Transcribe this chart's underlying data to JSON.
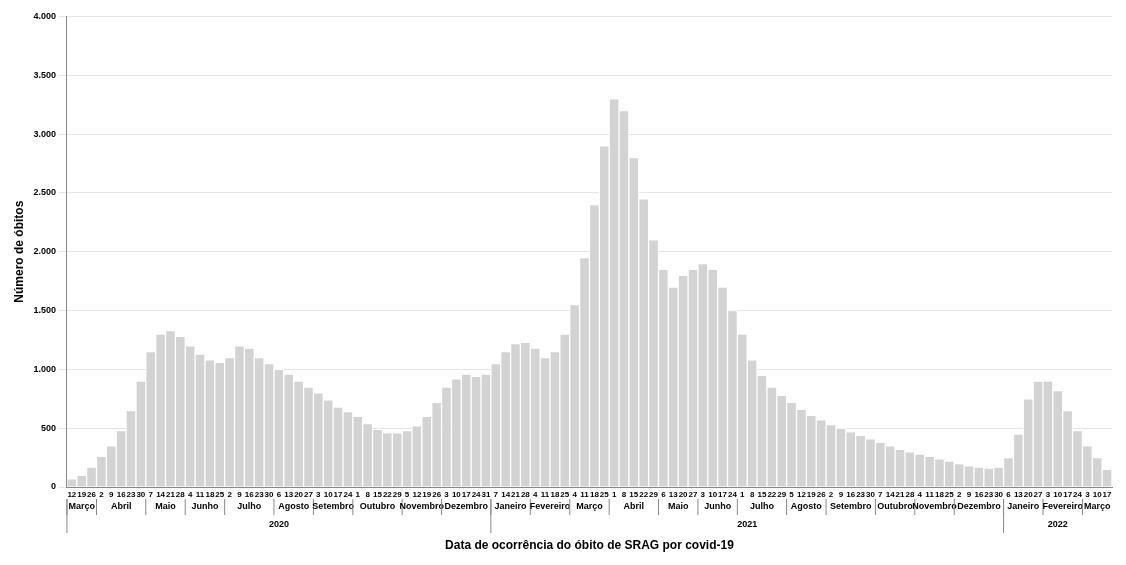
{
  "chart_data": {
    "type": "bar",
    "xlabel": "Data de ocorrência do óbito de SRAG por covid-19",
    "ylabel": "Número de óbitos",
    "x": [
      "2020-03-12",
      "2020-03-19",
      "2020-03-26",
      "2020-04-02",
      "2020-04-09",
      "2020-04-16",
      "2020-04-23",
      "2020-04-30",
      "2020-05-07",
      "2020-05-14",
      "2020-05-21",
      "2020-05-28",
      "2020-06-04",
      "2020-06-11",
      "2020-06-18",
      "2020-06-25",
      "2020-07-02",
      "2020-07-09",
      "2020-07-16",
      "2020-07-23",
      "2020-07-30",
      "2020-08-06",
      "2020-08-13",
      "2020-08-20",
      "2020-08-27",
      "2020-09-03",
      "2020-09-10",
      "2020-09-17",
      "2020-09-24",
      "2020-10-01",
      "2020-10-08",
      "2020-10-15",
      "2020-10-22",
      "2020-10-29",
      "2020-11-05",
      "2020-11-12",
      "2020-11-19",
      "2020-11-26",
      "2020-12-03",
      "2020-12-10",
      "2020-12-17",
      "2020-12-24",
      "2020-12-31",
      "2021-01-07",
      "2021-01-14",
      "2021-01-21",
      "2021-01-28",
      "2021-02-04",
      "2021-02-11",
      "2021-02-18",
      "2021-02-25",
      "2021-03-04",
      "2021-03-11",
      "2021-03-18",
      "2021-03-25",
      "2021-04-01",
      "2021-04-08",
      "2021-04-15",
      "2021-04-22",
      "2021-04-29",
      "2021-05-06",
      "2021-05-13",
      "2021-05-20",
      "2021-05-27",
      "2021-06-03",
      "2021-06-10",
      "2021-06-17",
      "2021-06-24",
      "2021-07-01",
      "2021-07-08",
      "2021-07-15",
      "2021-07-22",
      "2021-07-29",
      "2021-08-05",
      "2021-08-12",
      "2021-08-19",
      "2021-08-26",
      "2021-09-02",
      "2021-09-09",
      "2021-09-16",
      "2021-09-23",
      "2021-09-30",
      "2021-10-07",
      "2021-10-14",
      "2021-10-21",
      "2021-10-28",
      "2021-11-04",
      "2021-11-11",
      "2021-11-18",
      "2021-11-25",
      "2021-12-02",
      "2021-12-09",
      "2021-12-16",
      "2021-12-23",
      "2021-12-30",
      "2022-01-06",
      "2022-01-13",
      "2022-01-20",
      "2022-01-27",
      "2022-02-03",
      "2022-02-10",
      "2022-02-17",
      "2022-02-24",
      "2022-03-03",
      "2022-03-10",
      "2022-03-17"
    ],
    "values": [
      70,
      100,
      170,
      260,
      350,
      480,
      650,
      900,
      1150,
      1300,
      1330,
      1280,
      1200,
      1130,
      1080,
      1060,
      1100,
      1200,
      1180,
      1100,
      1050,
      1000,
      960,
      900,
      850,
      800,
      740,
      680,
      640,
      600,
      540,
      490,
      460,
      460,
      480,
      520,
      600,
      720,
      850,
      920,
      960,
      940,
      960,
      1050,
      1150,
      1220,
      1230,
      1180,
      1100,
      1150,
      1300,
      1550,
      1950,
      2400,
      2900,
      3300,
      3200,
      2800,
      2450,
      2100,
      1850,
      1700,
      1800,
      1850,
      1900,
      1850,
      1700,
      1500,
      1300,
      1080,
      950,
      850,
      780,
      720,
      660,
      610,
      570,
      530,
      500,
      470,
      440,
      410,
      380,
      350,
      320,
      300,
      280,
      260,
      240,
      220,
      200,
      180,
      170,
      160,
      170,
      250,
      450,
      750,
      900,
      900,
      820,
      650,
      480,
      350,
      250,
      150
    ],
    "color": "#d3d3d3",
    "ylim": [
      0,
      4000
    ],
    "yticks": [
      0,
      {
        "value": 500,
        "label": "500"
      },
      {
        "value": 1000,
        "label": "1.000"
      },
      {
        "value": 1500,
        "label": "1.500"
      },
      {
        "value": 2000,
        "label": "2.000"
      },
      {
        "value": 2500,
        "label": "2.500"
      },
      {
        "value": 3000,
        "label": "3.000"
      },
      {
        "value": 3500,
        "label": "3.500"
      },
      {
        "value": 4000,
        "label": "4.000"
      }
    ],
    "xticks": [
      {
        "value": "2020-03-12",
        "label": "12"
      },
      {
        "value": "2020-03-19",
        "label": "19"
      },
      {
        "value": "2020-03-26",
        "label": "26"
      },
      {
        "value": "2020-04-02",
        "label": "2"
      },
      {
        "value": "2020-04-09",
        "label": "9"
      },
      {
        "value": "2020-04-16",
        "label": "16"
      },
      {
        "value": "2020-04-23",
        "label": "23"
      },
      {
        "value": "2020-04-30",
        "label": "30"
      },
      {
        "value": "2020-05-07",
        "label": "7"
      },
      {
        "value": "2020-05-14",
        "label": "14"
      },
      {
        "value": "2020-05-21",
        "label": "21"
      },
      {
        "value": "2020-05-28",
        "label": "28"
      },
      {
        "value": "2020-06-04",
        "label": "4"
      },
      {
        "value": "2020-06-11",
        "label": "11"
      },
      {
        "value": "2020-06-18",
        "label": "18"
      },
      {
        "value": "2020-06-25",
        "label": "25"
      },
      {
        "value": "2020-07-02",
        "label": "2"
      },
      {
        "value": "2020-07-09",
        "label": "9"
      },
      {
        "value": "2020-07-16",
        "label": "16"
      },
      {
        "value": "2020-07-23",
        "label": "23"
      },
      {
        "value": "2020-07-30",
        "label": "30"
      },
      {
        "value": "2020-08-06",
        "label": "6"
      },
      {
        "value": "2020-08-13",
        "label": "13"
      },
      {
        "value": "2020-08-20",
        "label": "20"
      },
      {
        "value": "2020-08-27",
        "label": "27"
      },
      {
        "value": "2020-09-03",
        "label": "3"
      },
      {
        "value": "2020-09-10",
        "label": "10"
      },
      {
        "value": "2020-09-17",
        "label": "17"
      },
      {
        "value": "2020-09-24",
        "label": "24"
      },
      {
        "value": "2020-10-01",
        "label": "1"
      },
      {
        "value": "2020-10-08",
        "label": "8"
      },
      {
        "value": "2020-10-15",
        "label": "15"
      },
      {
        "value": "2020-10-22",
        "label": "22"
      },
      {
        "value": "2020-10-29",
        "label": "29"
      },
      {
        "value": "2020-11-05",
        "label": "5"
      },
      {
        "value": "2020-11-12",
        "label": "12"
      },
      {
        "value": "2020-11-19",
        "label": "19"
      },
      {
        "value": "2020-11-26",
        "label": "26"
      },
      {
        "value": "2020-12-03",
        "label": "3"
      },
      {
        "value": "2020-12-10",
        "label": "10"
      },
      {
        "value": "2020-12-17",
        "label": "17"
      },
      {
        "value": "2020-12-24",
        "label": "24"
      },
      {
        "value": "2020-12-31",
        "label": "31"
      },
      {
        "value": "2021-01-07",
        "label": "7"
      },
      {
        "value": "2021-01-14",
        "label": "14"
      },
      {
        "value": "2021-01-21",
        "label": "21"
      },
      {
        "value": "2021-01-28",
        "label": "28"
      },
      {
        "value": "2021-02-04",
        "label": "4"
      },
      {
        "value": "2021-02-11",
        "label": "11"
      },
      {
        "value": "2021-02-18",
        "label": "18"
      },
      {
        "value": "2021-02-25",
        "label": "25"
      },
      {
        "value": "2021-03-04",
        "label": "4"
      },
      {
        "value": "2021-03-11",
        "label": "11"
      },
      {
        "value": "2021-03-18",
        "label": "18"
      },
      {
        "value": "2021-03-25",
        "label": "25"
      },
      {
        "value": "2021-04-01",
        "label": "1"
      },
      {
        "value": "2021-04-08",
        "label": "8"
      },
      {
        "value": "2021-04-15",
        "label": "15"
      },
      {
        "value": "2021-04-22",
        "label": "22"
      },
      {
        "value": "2021-04-29",
        "label": "29"
      },
      {
        "value": "2021-05-06",
        "label": "6"
      },
      {
        "value": "2021-05-13",
        "label": "13"
      },
      {
        "value": "2021-05-20",
        "label": "20"
      },
      {
        "value": "2021-05-27",
        "label": "27"
      },
      {
        "value": "2021-06-03",
        "label": "3"
      },
      {
        "value": "2021-06-10",
        "label": "10"
      },
      {
        "value": "2021-06-17",
        "label": "17"
      },
      {
        "value": "2021-06-24",
        "label": "24"
      },
      {
        "value": "2021-07-01",
        "label": "1"
      },
      {
        "value": "2021-07-08",
        "label": "8"
      },
      {
        "value": "2021-07-15",
        "label": "15"
      },
      {
        "value": "2021-07-22",
        "label": "22"
      },
      {
        "value": "2021-07-29",
        "label": "29"
      },
      {
        "value": "2021-08-05",
        "label": "5"
      },
      {
        "value": "2021-08-12",
        "label": "12"
      },
      {
        "value": "2021-08-19",
        "label": "19"
      },
      {
        "value": "2021-08-26",
        "label": "26"
      },
      {
        "value": "2021-09-02",
        "label": "2"
      },
      {
        "value": "2021-09-09",
        "label": "9"
      },
      {
        "value": "2021-09-16",
        "label": "16"
      },
      {
        "value": "2021-09-23",
        "label": "23"
      },
      {
        "value": "2021-09-30",
        "label": "30"
      },
      {
        "value": "2021-10-07",
        "label": "7"
      },
      {
        "value": "2021-10-14",
        "label": "14"
      },
      {
        "value": "2021-10-21",
        "label": "21"
      },
      {
        "value": "2021-10-28",
        "label": "28"
      },
      {
        "value": "2021-11-04",
        "label": "4"
      },
      {
        "value": "2021-11-11",
        "label": "11"
      },
      {
        "value": "2021-11-18",
        "label": "18"
      },
      {
        "value": "2021-11-25",
        "label": "25"
      },
      {
        "value": "2021-12-02",
        "label": "2"
      },
      {
        "value": "2021-12-09",
        "label": "9"
      },
      {
        "value": "2021-12-16",
        "label": "16"
      },
      {
        "value": "2021-12-23",
        "label": "23"
      },
      {
        "value": "2021-12-30",
        "label": "30"
      },
      {
        "value": "2022-01-06",
        "label": "6"
      },
      {
        "value": "2022-01-13",
        "label": "13"
      },
      {
        "value": "2022-01-20",
        "label": "20"
      },
      {
        "value": "2022-01-27",
        "label": "27"
      },
      {
        "value": "2022-02-03",
        "label": "3"
      },
      {
        "value": "2022-02-10",
        "label": "10"
      },
      {
        "value": "2022-02-17",
        "label": "17"
      },
      {
        "value": "2022-02-24",
        "label": "24"
      },
      {
        "value": "2022-03-03",
        "label": "3"
      },
      {
        "value": "2022-03-10",
        "label": "10"
      },
      {
        "value": "2022-03-17",
        "label": "17"
      }
    ],
    "xlim": [
      "2020-03-08T12:00",
      "2022-03-20T12:00"
    ],
    "grid": "y",
    "annotations": [
      "Março",
      "Abril",
      "Maio",
      "Junho",
      "Julho",
      "Agosto",
      "Setembro",
      "Outubro",
      "Novembro",
      "Dezembro",
      "Janeiro",
      "Fevereiro",
      "Março",
      "Abril",
      "Maio",
      "Junho",
      "Julho",
      "Agosto",
      "Setembro",
      "Outubro",
      "Novembro",
      "Dezembro",
      "Janeiro",
      "Fevereiro",
      "Março",
      "2020",
      "2021",
      "2022"
    ]
  }
}
